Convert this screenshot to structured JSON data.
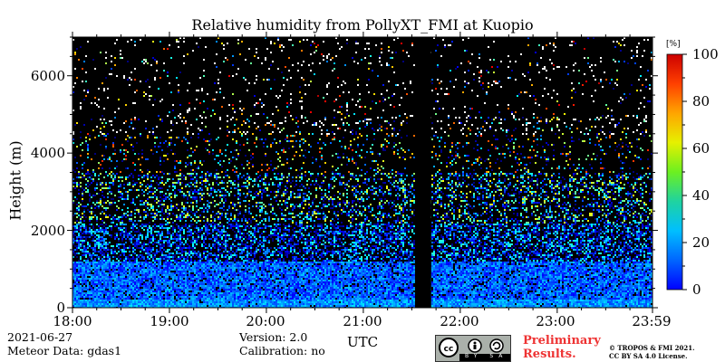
{
  "chart_data": {
    "type": "heatmap",
    "title": "Relative humidity from PollyXT_FMI at Kuopio",
    "ylabel": "Height (m)",
    "xlabel": "UTC",
    "yticks": [
      "0",
      "2000",
      "4000",
      "6000"
    ],
    "ylim": [
      0,
      7000
    ],
    "xticks": [
      "18:00",
      "19:00",
      "20:00",
      "21:00",
      "22:00",
      "23:00",
      "23:59"
    ],
    "xlim_hours": [
      18.0,
      23.983
    ],
    "missing_data_gap_utc": [
      "21:32",
      "21:42"
    ],
    "colorbar": {
      "unit": "[%]",
      "ticks": [
        "0",
        "20",
        "40",
        "60",
        "80",
        "100"
      ],
      "range": [
        0,
        100
      ],
      "colormap": "jet"
    }
  },
  "footer": {
    "date": "2021-06-27",
    "meteor": "Meteor Data: gdas1",
    "version": "Version: 2.0",
    "calibration": "Calibration: no",
    "cc_label": "BY SA",
    "prelim_1": "Preliminary",
    "prelim_2": "Results.",
    "copy_1": "© TROPOS & FMI 2021.",
    "copy_2": "CC BY SA 4.0 License."
  }
}
